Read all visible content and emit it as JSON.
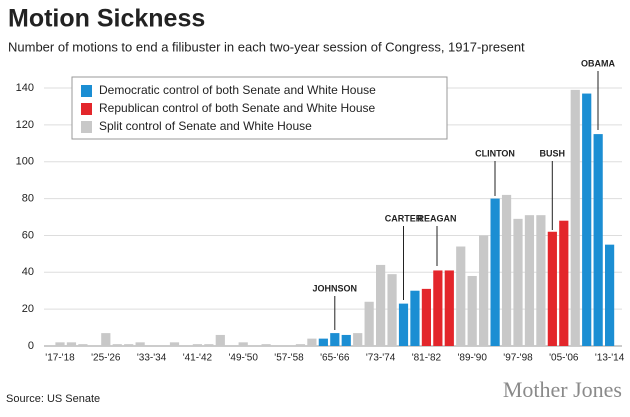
{
  "chart_data": {
    "type": "bar",
    "title": "Motion Sickness",
    "subtitle": "Number of motions to end a filibuster in each two-year session of Congress, 1917-present",
    "source": "Source: US Senate",
    "brand": "Mother Jones",
    "annotations": [
      "JOHNSON",
      "CARTER",
      "REAGAN",
      "CLINTON",
      "BUSH",
      "OBAMA"
    ],
    "categories": [
      "'17-'18",
      null,
      null,
      null,
      "'25-'26",
      null,
      null,
      null,
      "'33-'34",
      null,
      null,
      null,
      "'41-'42",
      null,
      null,
      null,
      "'49-'50",
      null,
      null,
      null,
      "'57-'58",
      null,
      null,
      null,
      "'65-'66",
      null,
      null,
      null,
      "'73-'74",
      null,
      null,
      null,
      "'81-'82",
      null,
      null,
      null,
      "'89-'90",
      null,
      null,
      null,
      "'97-'98",
      null,
      null,
      null,
      "'05-'06",
      null,
      null,
      null,
      "'13-'14"
    ],
    "series": [
      {
        "name": "Democratic control of both Senate and White House",
        "color": "#1b8ed3",
        "values": [
          null,
          null,
          null,
          null,
          null,
          null,
          null,
          null,
          null,
          null,
          null,
          null,
          null,
          null,
          null,
          null,
          null,
          null,
          null,
          null,
          null,
          null,
          null,
          4,
          7,
          6,
          null,
          null,
          null,
          null,
          23,
          30,
          null,
          null,
          null,
          null,
          null,
          null,
          80,
          null,
          null,
          null,
          null,
          null,
          null,
          null,
          137,
          115,
          55
        ]
      },
      {
        "name": "Republican control of both Senate and White House",
        "color": "#e3262b",
        "values": [
          null,
          null,
          null,
          null,
          null,
          null,
          null,
          null,
          null,
          null,
          null,
          null,
          null,
          null,
          null,
          null,
          null,
          null,
          null,
          null,
          null,
          null,
          null,
          null,
          null,
          null,
          null,
          null,
          null,
          null,
          null,
          null,
          31,
          41,
          41,
          null,
          null,
          null,
          null,
          null,
          null,
          null,
          null,
          62,
          68,
          null,
          null,
          null,
          null
        ]
      },
      {
        "name": "Split control of Senate and White House",
        "color": "#c8c8c8",
        "values": [
          2,
          2,
          1,
          0,
          7,
          1,
          1,
          2,
          0,
          0,
          2,
          0,
          1,
          1,
          6,
          0,
          2,
          0,
          1,
          0,
          0,
          1,
          4,
          null,
          null,
          null,
          7,
          24,
          44,
          39,
          null,
          null,
          null,
          null,
          null,
          54,
          38,
          60,
          null,
          82,
          69,
          71,
          71,
          null,
          null,
          139,
          null,
          null,
          null
        ]
      }
    ],
    "ylim": [
      0,
      150
    ],
    "yticks": [
      0,
      20,
      40,
      60,
      80,
      100,
      120,
      140
    ],
    "grid": true
  }
}
